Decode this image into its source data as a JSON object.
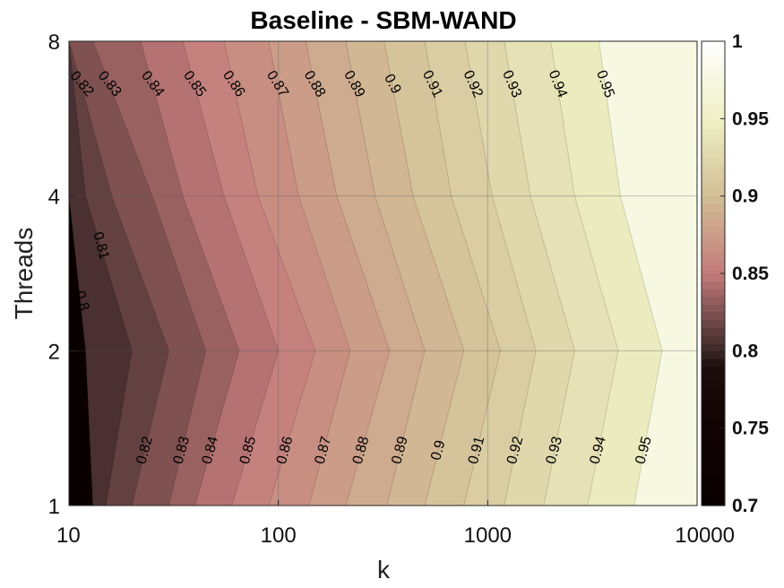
{
  "chart_data": {
    "type": "heatmap",
    "subtype": "filled-contour",
    "title": "Baseline - SBM-WAND",
    "xlabel": "k",
    "ylabel": "Threads",
    "x_scale": "log",
    "y_scale": "log2",
    "x_ticks": [
      "10",
      "100",
      "1000",
      "10000"
    ],
    "y_ticks": [
      "1",
      "2",
      "4",
      "8"
    ],
    "x_range": [
      10,
      10000
    ],
    "y_range": [
      1,
      8
    ],
    "grid": true,
    "colorbar": {
      "position": "right",
      "range": [
        0.7,
        1.0
      ],
      "ticks": [
        "0.7",
        "0.75",
        "0.8",
        "0.85",
        "0.9",
        "0.95",
        "1"
      ]
    },
    "contour_levels": [
      0.8,
      0.81,
      0.82,
      0.83,
      0.84,
      0.85,
      0.86,
      0.87,
      0.88,
      0.89,
      0.9,
      0.91,
      0.92,
      0.93,
      0.94,
      0.95
    ],
    "contour_labels": {
      "top": [
        "0.82",
        "0.83",
        "0.84",
        "0.85",
        "0.86",
        "0.87",
        "0.88",
        "0.89",
        "0.9",
        "0.91",
        "0.92",
        "0.93",
        "0.94",
        "0.95"
      ],
      "middle": [
        "0.81",
        "0.8"
      ],
      "bottom": [
        "0.82",
        "0.83",
        "0.84",
        "0.85",
        "0.86",
        "0.87",
        "0.88",
        "0.89",
        "0.9",
        "0.91",
        "0.92",
        "0.93",
        "0.94",
        "0.95"
      ]
    },
    "level_crossings_k": {
      "threads": [
        1,
        2,
        4,
        8
      ],
      "levels": {
        "0.8": [
          13,
          12,
          10,
          10
        ],
        "0.81": [
          15,
          20,
          12,
          10
        ],
        "0.82": [
          20,
          30,
          16,
          10
        ],
        "0.83": [
          30,
          45,
          25,
          13
        ],
        "0.84": [
          40,
          65,
          35,
          22
        ],
        "0.85": [
          60,
          100,
          55,
          35
        ],
        "0.86": [
          90,
          150,
          80,
          55
        ],
        "0.87": [
          140,
          220,
          125,
          90
        ],
        "0.88": [
          210,
          340,
          190,
          135
        ],
        "0.89": [
          330,
          500,
          290,
          210
        ],
        "0.9": [
          500,
          770,
          440,
          320
        ],
        "0.91": [
          770,
          1150,
          670,
          500
        ],
        "0.92": [
          1200,
          1700,
          1050,
          780
        ],
        "0.93": [
          1850,
          2600,
          1600,
          1200
        ],
        "0.94": [
          3000,
          4200,
          2600,
          2000
        ],
        "0.95": [
          5000,
          6800,
          4300,
          3400
        ]
      }
    }
  }
}
